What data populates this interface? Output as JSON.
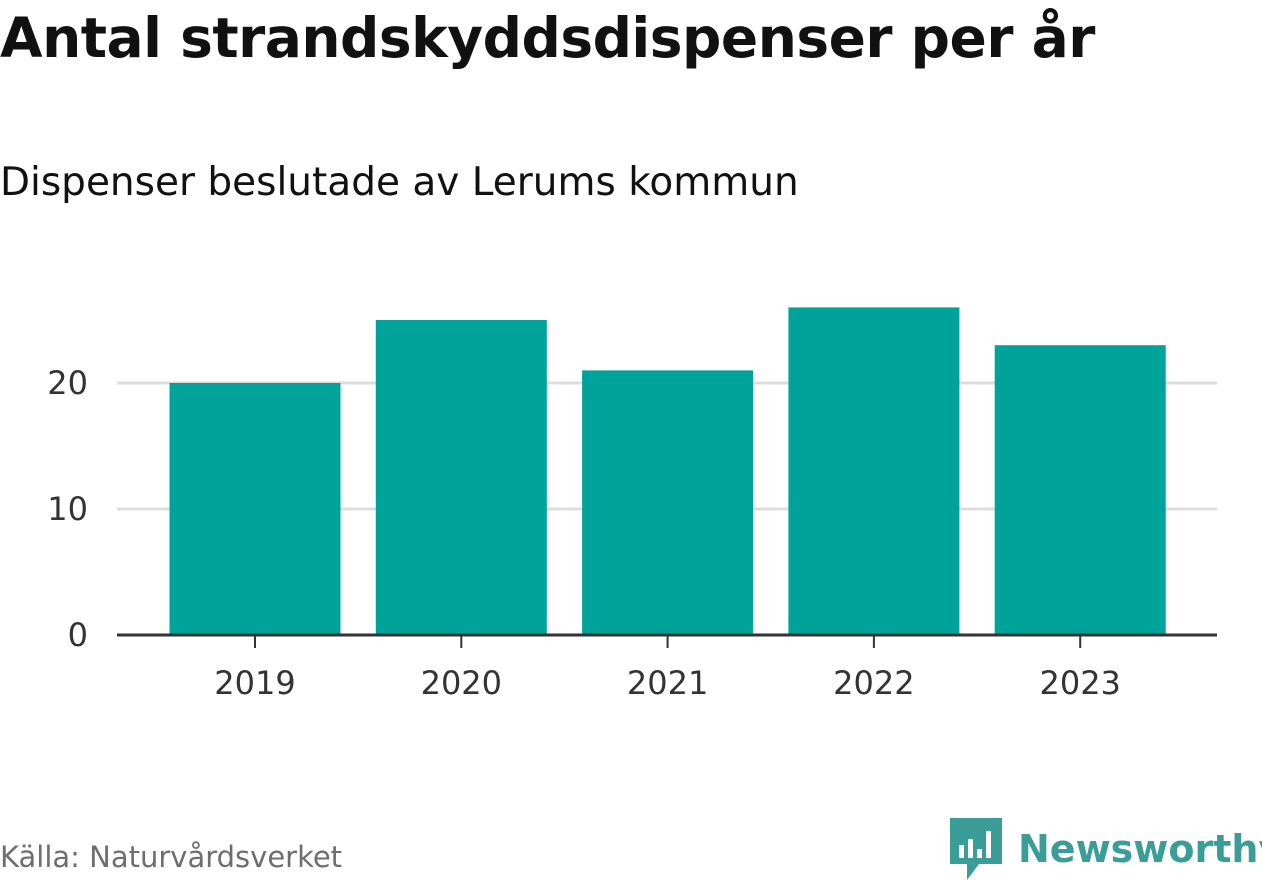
{
  "title": "Antal strandskyddsdispenser per år",
  "subtitle": "Dispenser beslutade av Lerums kommun",
  "source": "Källa: Naturvårdsverket",
  "brand": {
    "name": "Newsworthy",
    "icon": "newsworthy-bar-chart-logo",
    "color": "#3a9d97"
  },
  "chart_data": {
    "type": "bar",
    "categories": [
      "2019",
      "2020",
      "2021",
      "2022",
      "2023"
    ],
    "values": [
      20,
      25,
      21,
      26,
      23
    ],
    "y_ticks": [
      0,
      10,
      20
    ],
    "ylim": [
      0,
      28
    ],
    "grid": true,
    "bar_color": "#00a39a",
    "title": "Antal strandskyddsdispenser per år",
    "xlabel": "",
    "ylabel": ""
  }
}
